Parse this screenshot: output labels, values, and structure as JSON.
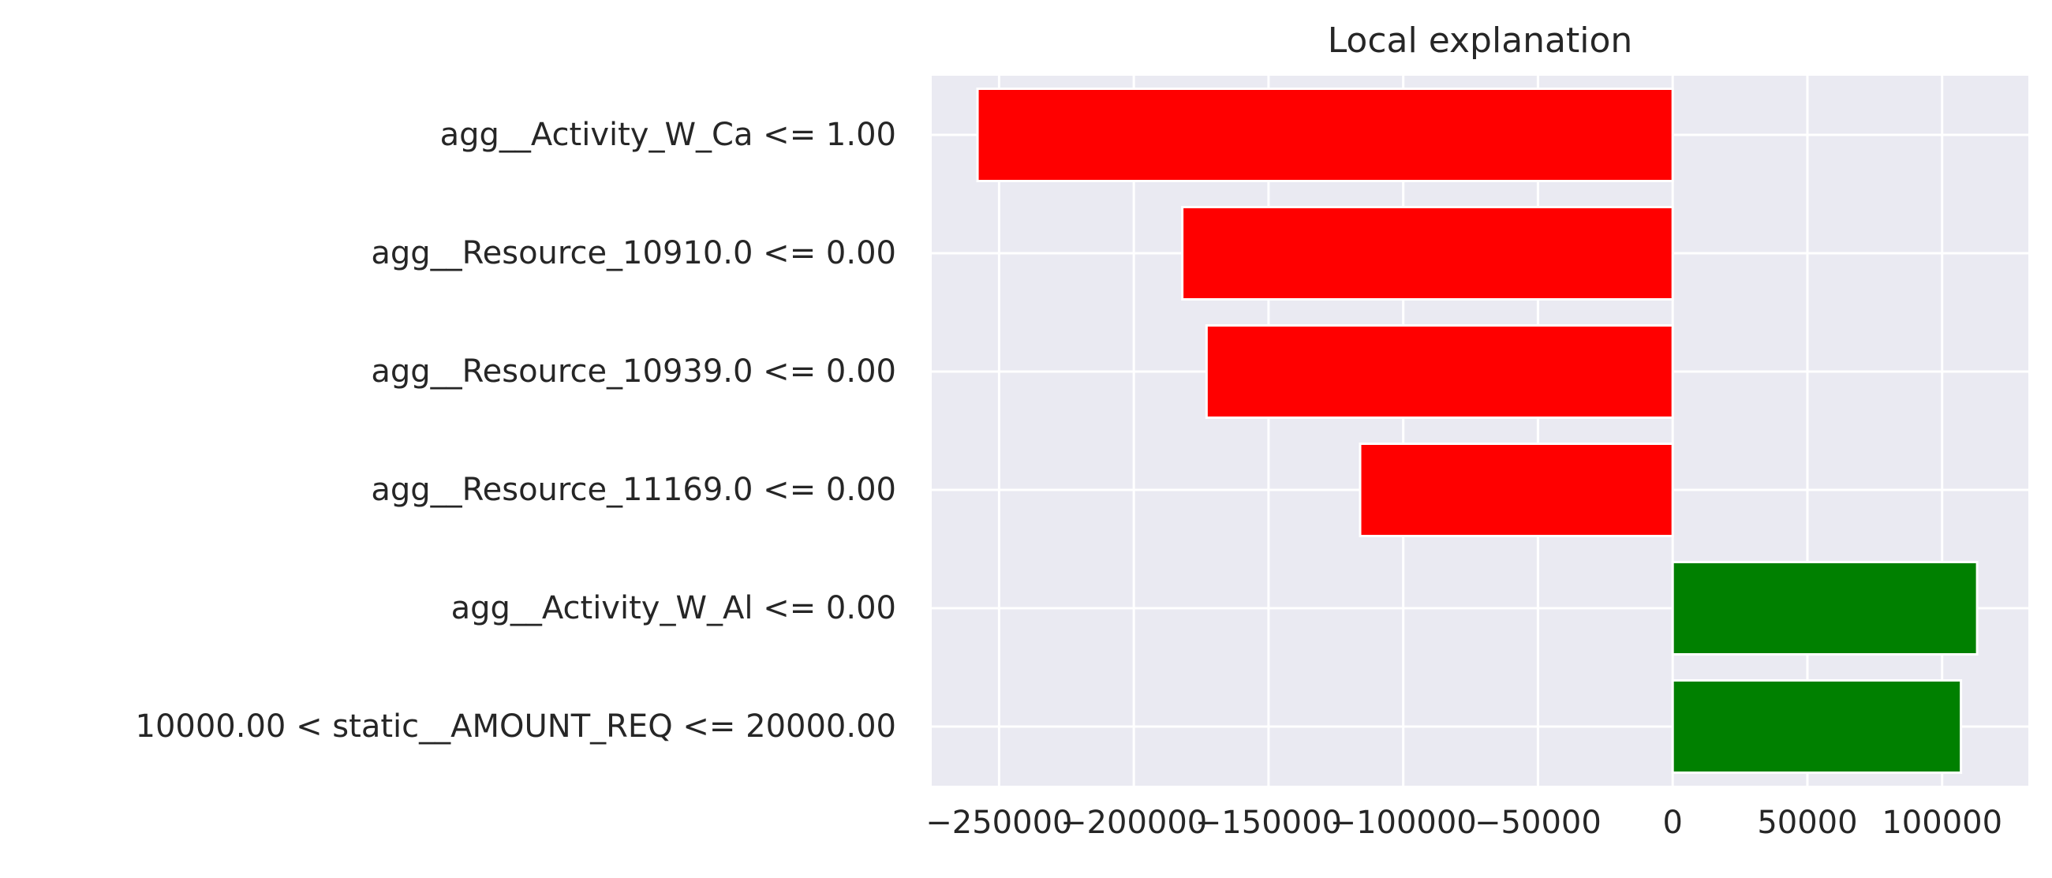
{
  "chart_data": {
    "type": "bar",
    "orientation": "horizontal",
    "title": "Local explanation",
    "xlabel": "",
    "ylabel": "",
    "categories": [
      "agg__Activity_W_Ca <= 1.00",
      "agg__Resource_10910.0 <= 0.00",
      "agg__Resource_10939.0 <= 0.00",
      "agg__Resource_11169.0 <= 0.00",
      "agg__Activity_W_Al <= 0.00",
      "10000.00 < static__AMOUNT_REQ <= 20000.00"
    ],
    "values": [
      -258000,
      -182000,
      -173000,
      -116000,
      113000,
      107000
    ],
    "xlim": [
      -275000,
      132000
    ],
    "xticks": [
      -250000,
      -200000,
      -150000,
      -100000,
      -50000,
      0,
      50000,
      100000
    ],
    "xtick_labels": [
      "−250000",
      "−200000",
      "−150000",
      "−100000",
      "−50000",
      "0",
      "50000",
      "100000"
    ],
    "colors": {
      "positive": "#008000",
      "negative": "#ff0000",
      "plot_background": "#eaeaf2",
      "grid": "#ffffff"
    },
    "grid": true,
    "legend": "none"
  }
}
